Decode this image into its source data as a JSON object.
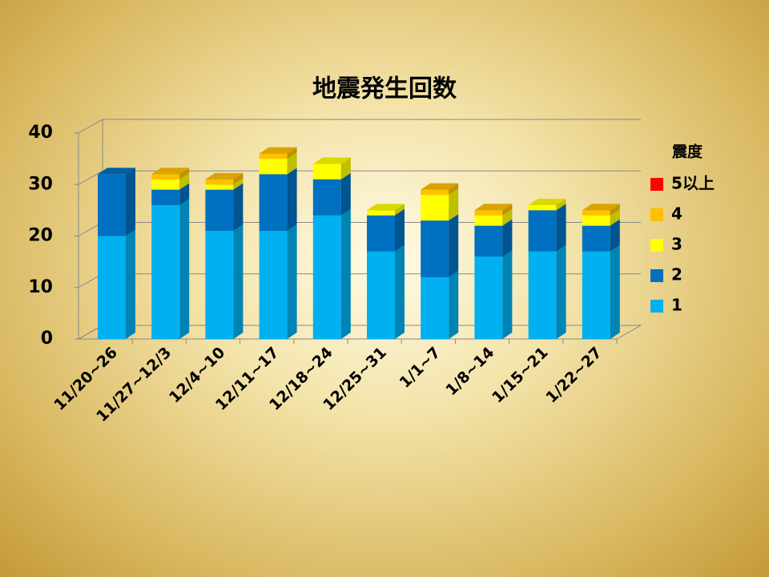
{
  "chart_data": {
    "type": "bar3d_stacked",
    "title": "地震発生回数",
    "categories": [
      "11/20~26",
      "11/27~12/3",
      "12/4~10",
      "12/11~17",
      "12/18~24",
      "12/25~31",
      "1/1~7",
      "1/8~14",
      "1/15~21",
      "1/22~27"
    ],
    "legend_title": "震度",
    "series": [
      {
        "name": "1",
        "color": "#00b0f0",
        "values": [
          20,
          26,
          21,
          21,
          24,
          17,
          12,
          16,
          17,
          17
        ]
      },
      {
        "name": "2",
        "color": "#0070c0",
        "values": [
          12,
          3,
          8,
          11,
          7,
          7,
          11,
          6,
          8,
          5
        ]
      },
      {
        "name": "3",
        "color": "#ffff00",
        "values": [
          0,
          2,
          1,
          3,
          3,
          1,
          5,
          2,
          1,
          2
        ]
      },
      {
        "name": "4",
        "color": "#ffc000",
        "values": [
          0,
          1,
          1,
          1,
          0,
          0,
          1,
          1,
          0,
          1
        ]
      },
      {
        "name": "5以上",
        "color": "#ff0000",
        "values": [
          0,
          0,
          0,
          0,
          0,
          0,
          0,
          0,
          0,
          0
        ]
      }
    ],
    "ylim": [
      0,
      40
    ],
    "yticks": [
      0,
      10,
      20,
      30,
      40
    ],
    "grid": true,
    "legend": "right"
  }
}
